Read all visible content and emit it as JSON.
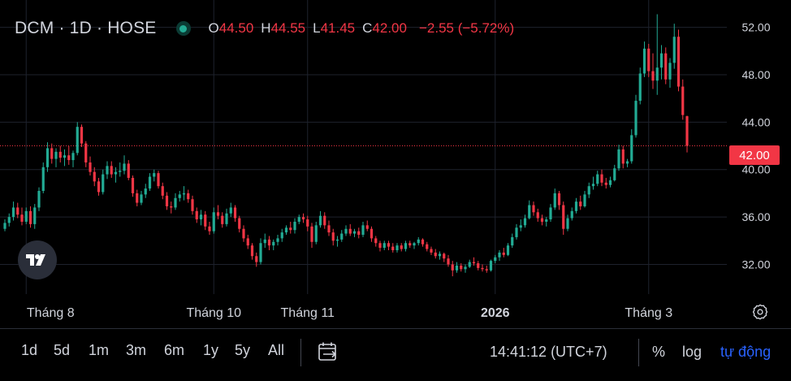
{
  "header": {
    "symbol": "DCM · 1D · HOSE",
    "open_label": "O",
    "open_value": "44.50",
    "high_label": "H",
    "high_value": "44.55",
    "low_label": "L",
    "low_value": "41.45",
    "close_label": "C",
    "close_value": "42.00",
    "change": "−2.55 (−5.72%)"
  },
  "last_price_label": "42.00",
  "toolbar": {
    "timeframes": [
      "1d",
      "5d",
      "1m",
      "3m",
      "6m",
      "1y",
      "5y",
      "All"
    ],
    "clock": "14:41:12 (UTC+7)",
    "percent_label": "%",
    "log_label": "log",
    "auto_label": "tự động"
  },
  "colors": {
    "up": "#22ab94",
    "down": "#f23645",
    "background": "#000000",
    "grid": "#1e222d",
    "text": "#d1d4dc",
    "accent": "#2962ff"
  },
  "icons": {
    "status": "market-status-dot",
    "logo": "tradingview-logo",
    "settings": "gear-icon",
    "goto_date": "calendar-goto-icon"
  },
  "chart_data": {
    "type": "candlestick",
    "symbol": "DCM",
    "interval": "1D",
    "exchange": "HOSE",
    "y_range": [
      29.5,
      54.3
    ],
    "y_ticks": [
      32,
      36,
      40,
      44,
      48,
      52
    ],
    "y_tick_labels": [
      "32.00",
      "36.00",
      "40.00",
      "44.00",
      "48.00",
      "52.00"
    ],
    "x_labels": [
      {
        "label": "Tháng 8",
        "index": 5
      },
      {
        "label": "Tháng 10",
        "index": 49
      },
      {
        "label": "Tháng 11",
        "index": 71
      },
      {
        "label": "2026",
        "index": 115,
        "bold": true
      },
      {
        "label": "Tháng 3",
        "index": 151
      }
    ],
    "last_price": 42.0,
    "candles": [
      [
        35.0,
        35.8,
        34.8,
        35.5
      ],
      [
        35.5,
        36.3,
        35.2,
        36.0
      ],
      [
        36.0,
        37.3,
        35.7,
        36.8
      ],
      [
        36.8,
        37.2,
        35.9,
        36.2
      ],
      [
        36.2,
        36.8,
        35.3,
        35.6
      ],
      [
        35.6,
        36.8,
        35.4,
        36.5
      ],
      [
        36.5,
        36.9,
        35.1,
        35.4
      ],
      [
        35.4,
        37.1,
        35.0,
        36.8
      ],
      [
        36.8,
        38.5,
        36.5,
        38.2
      ],
      [
        38.2,
        40.6,
        38.0,
        40.2
      ],
      [
        40.2,
        42.3,
        39.8,
        41.8
      ],
      [
        41.8,
        42.2,
        40.5,
        40.9
      ],
      [
        40.9,
        41.8,
        40.2,
        41.5
      ],
      [
        41.5,
        42.0,
        40.6,
        41.0
      ],
      [
        41.0,
        41.7,
        40.3,
        41.2
      ],
      [
        41.2,
        42.0,
        40.4,
        40.8
      ],
      [
        40.8,
        41.6,
        40.2,
        41.4
      ],
      [
        41.4,
        44.0,
        41.2,
        43.6
      ],
      [
        43.6,
        43.8,
        41.9,
        42.2
      ],
      [
        42.2,
        42.4,
        40.2,
        40.6
      ],
      [
        40.6,
        41.1,
        39.5,
        39.8
      ],
      [
        39.8,
        40.2,
        38.6,
        39.0
      ],
      [
        39.0,
        39.3,
        37.8,
        38.1
      ],
      [
        38.1,
        40.0,
        37.9,
        39.6
      ],
      [
        39.6,
        40.7,
        39.2,
        40.3
      ],
      [
        40.3,
        40.7,
        39.3,
        39.6
      ],
      [
        39.6,
        40.2,
        38.9,
        39.8
      ],
      [
        39.8,
        40.6,
        39.4,
        39.9
      ],
      [
        39.9,
        41.2,
        39.6,
        40.5
      ],
      [
        40.5,
        40.8,
        39.1,
        39.3
      ],
      [
        39.3,
        39.5,
        37.7,
        38.0
      ],
      [
        38.0,
        38.3,
        36.9,
        37.2
      ],
      [
        37.2,
        38.2,
        37.0,
        37.9
      ],
      [
        37.9,
        38.8,
        37.6,
        38.4
      ],
      [
        38.4,
        39.7,
        38.2,
        39.4
      ],
      [
        39.4,
        40.0,
        39.0,
        39.7
      ],
      [
        39.7,
        39.9,
        38.4,
        38.6
      ],
      [
        38.6,
        38.9,
        37.5,
        37.8
      ],
      [
        37.8,
        38.1,
        36.6,
        36.9
      ],
      [
        36.9,
        37.3,
        36.3,
        36.8
      ],
      [
        36.8,
        38.0,
        36.6,
        37.6
      ],
      [
        37.6,
        38.2,
        37.3,
        37.9
      ],
      [
        37.9,
        38.6,
        37.4,
        38.0
      ],
      [
        38.0,
        38.3,
        37.2,
        37.5
      ],
      [
        37.5,
        37.8,
        36.2,
        36.5
      ],
      [
        36.5,
        36.8,
        35.5,
        35.8
      ],
      [
        35.8,
        36.6,
        35.3,
        36.2
      ],
      [
        36.2,
        36.5,
        34.9,
        35.2
      ],
      [
        35.2,
        35.6,
        34.5,
        34.8
      ],
      [
        34.8,
        36.8,
        34.6,
        36.4
      ],
      [
        36.4,
        37.0,
        35.8,
        36.1
      ],
      [
        36.1,
        36.4,
        35.1,
        35.4
      ],
      [
        35.4,
        36.7,
        35.2,
        36.3
      ],
      [
        36.3,
        37.2,
        36.0,
        36.8
      ],
      [
        36.8,
        37.0,
        35.6,
        35.9
      ],
      [
        35.9,
        36.1,
        34.7,
        35.0
      ],
      [
        35.0,
        35.3,
        33.9,
        34.2
      ],
      [
        34.2,
        34.5,
        33.3,
        33.6
      ],
      [
        33.6,
        33.8,
        32.4,
        32.7
      ],
      [
        32.7,
        33.0,
        31.8,
        32.2
      ],
      [
        32.2,
        34.2,
        32.0,
        33.8
      ],
      [
        33.8,
        34.6,
        33.4,
        34.1
      ],
      [
        34.1,
        34.4,
        33.2,
        33.6
      ],
      [
        33.6,
        34.1,
        33.2,
        33.9
      ],
      [
        33.9,
        34.5,
        33.6,
        34.2
      ],
      [
        34.2,
        35.0,
        33.9,
        34.7
      ],
      [
        34.7,
        35.3,
        34.5,
        35.1
      ],
      [
        35.1,
        35.6,
        34.6,
        34.9
      ],
      [
        34.9,
        35.9,
        34.6,
        35.6
      ],
      [
        35.6,
        36.2,
        35.4,
        36.0
      ],
      [
        36.0,
        36.3,
        35.5,
        35.8
      ],
      [
        35.8,
        36.1,
        34.8,
        35.2
      ],
      [
        35.2,
        35.5,
        33.4,
        33.9
      ],
      [
        33.9,
        35.6,
        33.7,
        35.3
      ],
      [
        35.3,
        36.5,
        35.1,
        36.1
      ],
      [
        36.1,
        36.4,
        35.0,
        35.3
      ],
      [
        35.3,
        35.7,
        34.4,
        34.7
      ],
      [
        34.7,
        35.0,
        33.6,
        34.0
      ],
      [
        34.0,
        34.4,
        33.5,
        34.1
      ],
      [
        34.1,
        34.9,
        33.9,
        34.6
      ],
      [
        34.6,
        35.3,
        34.4,
        35.0
      ],
      [
        35.0,
        35.4,
        34.4,
        34.6
      ],
      [
        34.6,
        35.0,
        34.3,
        34.8
      ],
      [
        34.8,
        35.1,
        34.2,
        34.5
      ],
      [
        34.5,
        35.6,
        34.3,
        35.3
      ],
      [
        35.3,
        35.7,
        34.8,
        35.0
      ],
      [
        35.0,
        35.2,
        33.9,
        34.2
      ],
      [
        34.2,
        34.4,
        33.5,
        33.8
      ],
      [
        33.8,
        34.0,
        33.1,
        33.4
      ],
      [
        33.4,
        34.0,
        33.2,
        33.8
      ],
      [
        33.8,
        34.0,
        33.2,
        33.5
      ],
      [
        33.5,
        33.8,
        33.0,
        33.2
      ],
      [
        33.2,
        33.8,
        33.0,
        33.6
      ],
      [
        33.6,
        33.8,
        33.1,
        33.3
      ],
      [
        33.3,
        34.0,
        33.1,
        33.8
      ],
      [
        33.8,
        34.0,
        33.4,
        33.6
      ],
      [
        33.6,
        33.9,
        33.3,
        33.8
      ],
      [
        33.8,
        34.3,
        33.6,
        34.1
      ],
      [
        34.1,
        34.2,
        33.5,
        33.7
      ],
      [
        33.7,
        33.9,
        33.1,
        33.3
      ],
      [
        33.3,
        33.5,
        32.8,
        33.0
      ],
      [
        33.0,
        33.3,
        32.5,
        32.7
      ],
      [
        32.7,
        33.1,
        32.4,
        32.9
      ],
      [
        32.9,
        33.0,
        32.2,
        32.5
      ],
      [
        32.5,
        32.8,
        31.8,
        32.0
      ],
      [
        32.0,
        32.3,
        31.0,
        31.5
      ],
      [
        31.5,
        32.2,
        31.3,
        31.9
      ],
      [
        31.9,
        32.1,
        31.4,
        31.6
      ],
      [
        31.6,
        32.0,
        31.3,
        31.8
      ],
      [
        31.8,
        32.4,
        31.7,
        32.2
      ],
      [
        32.2,
        32.6,
        31.9,
        32.1
      ],
      [
        32.1,
        32.3,
        31.5,
        31.7
      ],
      [
        31.7,
        32.0,
        31.4,
        31.6
      ],
      [
        31.6,
        31.9,
        31.3,
        31.5
      ],
      [
        31.5,
        32.4,
        31.4,
        32.3
      ],
      [
        32.3,
        32.8,
        32.1,
        32.6
      ],
      [
        32.6,
        33.2,
        32.3,
        33.0
      ],
      [
        33.0,
        33.4,
        32.6,
        32.8
      ],
      [
        32.8,
        33.8,
        32.7,
        33.6
      ],
      [
        33.6,
        34.6,
        33.4,
        34.3
      ],
      [
        34.3,
        35.4,
        34.1,
        35.1
      ],
      [
        35.1,
        35.8,
        34.8,
        35.3
      ],
      [
        35.3,
        36.2,
        35.1,
        35.9
      ],
      [
        35.9,
        37.4,
        35.8,
        37.0
      ],
      [
        37.0,
        37.3,
        36.1,
        36.4
      ],
      [
        36.4,
        36.7,
        35.6,
        35.9
      ],
      [
        35.9,
        36.2,
        35.3,
        35.6
      ],
      [
        35.6,
        36.0,
        35.2,
        35.8
      ],
      [
        35.8,
        37.1,
        35.6,
        36.8
      ],
      [
        36.8,
        38.4,
        36.6,
        38.0
      ],
      [
        38.0,
        38.2,
        36.6,
        37.0
      ],
      [
        37.0,
        37.3,
        34.5,
        35.0
      ],
      [
        35.0,
        36.2,
        34.8,
        35.9
      ],
      [
        35.9,
        36.8,
        35.7,
        36.5
      ],
      [
        36.5,
        37.6,
        36.3,
        37.3
      ],
      [
        37.3,
        37.8,
        36.6,
        36.9
      ],
      [
        36.9,
        38.2,
        36.8,
        37.9
      ],
      [
        37.9,
        38.9,
        37.6,
        38.6
      ],
      [
        38.6,
        39.4,
        38.3,
        38.8
      ],
      [
        38.8,
        39.9,
        38.6,
        39.6
      ],
      [
        39.6,
        40.0,
        38.6,
        38.9
      ],
      [
        38.9,
        39.3,
        38.4,
        38.7
      ],
      [
        38.7,
        39.4,
        38.5,
        39.1
      ],
      [
        39.1,
        40.4,
        39.0,
        40.1
      ],
      [
        40.1,
        42.1,
        39.9,
        41.7
      ],
      [
        41.7,
        42.0,
        40.1,
        40.5
      ],
      [
        40.5,
        40.9,
        40.2,
        40.7
      ],
      [
        40.7,
        43.4,
        40.5,
        42.9
      ],
      [
        42.9,
        46.3,
        42.7,
        45.8
      ],
      [
        45.8,
        48.6,
        45.5,
        48.1
      ],
      [
        48.1,
        50.8,
        47.8,
        50.2
      ],
      [
        50.2,
        50.6,
        47.8,
        48.3
      ],
      [
        48.3,
        49.8,
        46.8,
        47.5
      ],
      [
        47.5,
        53.1,
        46.3,
        48.6
      ],
      [
        48.6,
        50.5,
        47.6,
        49.8
      ],
      [
        49.8,
        50.3,
        47.2,
        47.6
      ],
      [
        47.6,
        49.4,
        46.9,
        49.0
      ],
      [
        49.0,
        52.3,
        48.5,
        51.2
      ],
      [
        51.2,
        51.8,
        46.6,
        47.0
      ],
      [
        47.0,
        47.6,
        44.2,
        44.6
      ],
      [
        44.5,
        44.55,
        41.45,
        42.0
      ]
    ]
  }
}
